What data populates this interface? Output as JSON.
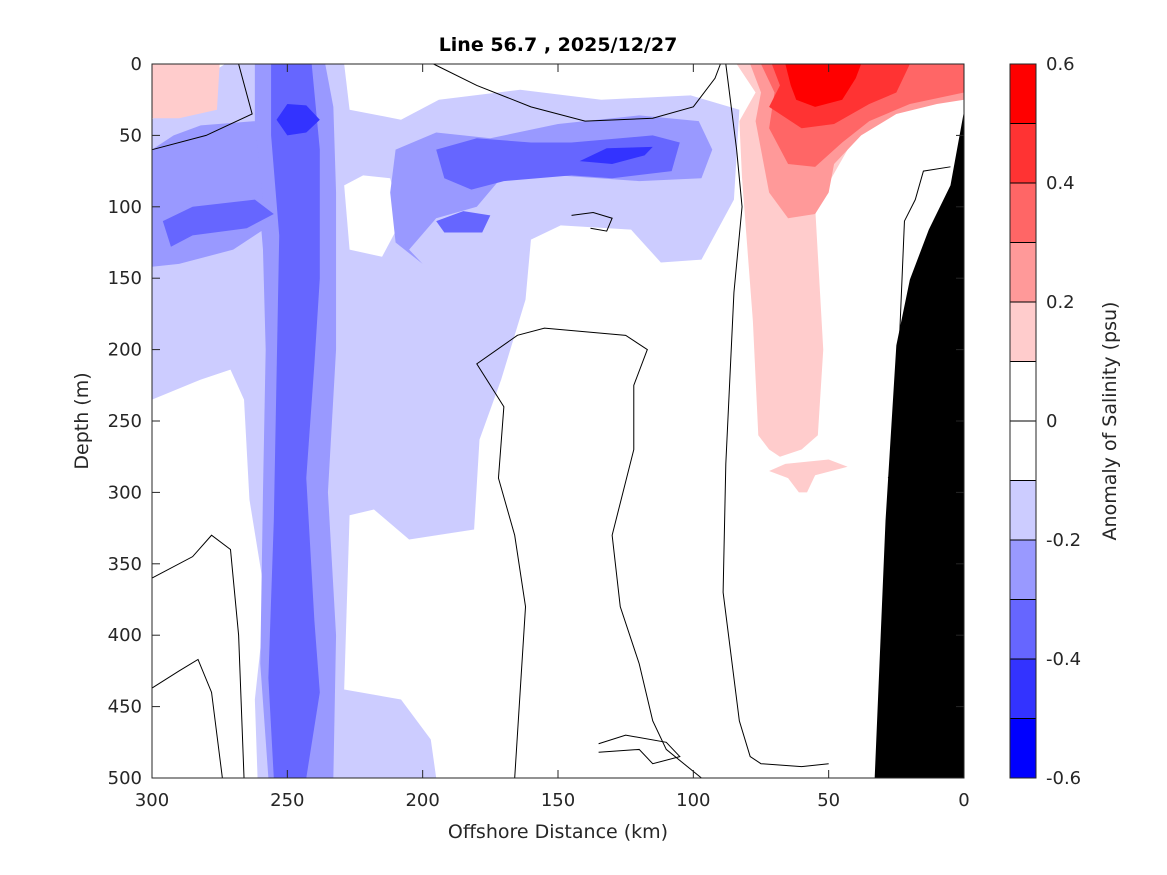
{
  "chart_data": {
    "type": "heatmap",
    "title": "Line 56.7 , 2025/12/27",
    "xlabel": "Offshore Distance (km)",
    "ylabel": "Depth (m)",
    "colorbar_label": "Anomaly of Salinity (psu)",
    "xlim": [
      300,
      0
    ],
    "ylim": [
      0,
      500
    ],
    "xticks": [
      300,
      250,
      200,
      150,
      100,
      50,
      0
    ],
    "yticks": [
      0,
      50,
      100,
      150,
      200,
      250,
      300,
      350,
      400,
      450,
      500
    ],
    "clim": [
      -0.6,
      0.6
    ],
    "colorbar_ticks": [
      "0.6",
      "0.4",
      "0.2",
      "0",
      "-0.2",
      "-0.4",
      "-0.6"
    ],
    "colorbar_tick_values": [
      0.6,
      0.4,
      0.2,
      0,
      -0.2,
      -0.4,
      -0.6
    ],
    "levels": [
      {
        "min": -0.6,
        "max": -0.5,
        "color": "#0000ff"
      },
      {
        "min": -0.5,
        "max": -0.4,
        "color": "#3333ff"
      },
      {
        "min": -0.4,
        "max": -0.3,
        "color": "#6666ff"
      },
      {
        "min": -0.3,
        "max": -0.2,
        "color": "#9999ff"
      },
      {
        "min": -0.2,
        "max": -0.1,
        "color": "#ccccff"
      },
      {
        "min": -0.1,
        "max": 0.0,
        "color": "#ffffff"
      },
      {
        "min": 0.0,
        "max": 0.1,
        "color": "#ffffff"
      },
      {
        "min": 0.1,
        "max": 0.2,
        "color": "#ffcccc"
      },
      {
        "min": 0.2,
        "max": 0.3,
        "color": "#ff9999"
      },
      {
        "min": 0.3,
        "max": 0.4,
        "color": "#ff6666"
      },
      {
        "min": 0.4,
        "max": 0.5,
        "color": "#ff3333"
      },
      {
        "min": 0.5,
        "max": 0.6,
        "color": "#ff0000"
      }
    ],
    "regions": [
      {
        "value": -0.15,
        "points": [
          [
            300,
            39
          ],
          [
            292,
            22
          ],
          [
            282,
            11
          ],
          [
            273,
            0
          ],
          [
            229,
            0
          ],
          [
            227,
            32
          ],
          [
            208,
            39
          ],
          [
            194,
            25
          ],
          [
            164,
            18
          ],
          [
            134,
            25
          ],
          [
            101,
            22
          ],
          [
            83,
            32
          ],
          [
            85,
            95
          ],
          [
            97,
            137
          ],
          [
            112,
            139
          ],
          [
            123,
            116
          ],
          [
            149,
            113
          ],
          [
            160,
            123
          ],
          [
            162,
            165
          ],
          [
            171,
            221
          ],
          [
            179,
            263
          ],
          [
            181,
            326
          ],
          [
            205,
            333
          ],
          [
            218,
            312
          ],
          [
            227,
            316
          ],
          [
            229,
            438
          ],
          [
            208,
            445
          ],
          [
            197,
            473
          ],
          [
            195,
            500
          ],
          [
            261,
            500
          ],
          [
            262,
            445
          ],
          [
            258,
            375
          ],
          [
            264,
            305
          ],
          [
            266,
            235
          ],
          [
            271,
            214
          ],
          [
            282,
            221
          ],
          [
            300,
            235
          ]
        ]
      },
      {
        "value": 0.0,
        "points": [
          [
            229,
            85
          ],
          [
            222,
            78
          ],
          [
            212,
            80
          ],
          [
            208,
            110
          ],
          [
            215,
            135
          ],
          [
            227,
            130
          ]
        ]
      },
      {
        "value": 0.15,
        "points": [
          [
            300,
            0
          ],
          [
            275,
            0
          ],
          [
            276,
            32
          ],
          [
            290,
            38
          ],
          [
            300,
            38
          ]
        ]
      },
      {
        "value": -0.25,
        "points": [
          [
            262,
            0
          ],
          [
            236,
            0
          ],
          [
            233,
            30
          ],
          [
            232,
            90
          ],
          [
            232,
            200
          ],
          [
            235,
            300
          ],
          [
            232,
            400
          ],
          [
            233,
            500
          ],
          [
            257,
            500
          ],
          [
            260,
            420
          ],
          [
            259,
            300
          ],
          [
            258,
            200
          ],
          [
            259,
            130
          ],
          [
            262,
            60
          ]
        ]
      },
      {
        "value": -0.25,
        "points": [
          [
            300,
            60
          ],
          [
            292,
            50
          ],
          [
            282,
            43
          ],
          [
            262,
            40
          ],
          [
            258,
            115
          ],
          [
            270,
            130
          ],
          [
            290,
            140
          ],
          [
            300,
            142
          ]
        ]
      },
      {
        "value": -0.25,
        "points": [
          [
            210,
            60
          ],
          [
            195,
            48
          ],
          [
            175,
            52
          ],
          [
            150,
            42
          ],
          [
            120,
            36
          ],
          [
            98,
            40
          ],
          [
            93,
            60
          ],
          [
            97,
            80
          ],
          [
            120,
            82
          ],
          [
            150,
            78
          ],
          [
            172,
            82
          ],
          [
            180,
            100
          ],
          [
            195,
            108
          ],
          [
            205,
            130
          ],
          [
            200,
            140
          ],
          [
            210,
            125
          ],
          [
            212,
            90
          ]
        ]
      },
      {
        "value": -0.35,
        "points": [
          [
            256,
            0
          ],
          [
            241,
            0
          ],
          [
            238,
            60
          ],
          [
            238,
            150
          ],
          [
            240,
            210
          ],
          [
            243,
            290
          ],
          [
            240,
            390
          ],
          [
            238,
            440
          ],
          [
            243,
            500
          ],
          [
            255,
            500
          ],
          [
            257,
            430
          ],
          [
            255,
            320
          ],
          [
            254,
            220
          ],
          [
            253,
            120
          ],
          [
            256,
            50
          ]
        ]
      },
      {
        "value": -0.35,
        "points": [
          [
            296,
            110
          ],
          [
            285,
            100
          ],
          [
            262,
            95
          ],
          [
            255,
            105
          ],
          [
            265,
            115
          ],
          [
            285,
            120
          ],
          [
            293,
            128
          ]
        ]
      },
      {
        "value": -0.35,
        "points": [
          [
            195,
            60
          ],
          [
            180,
            52
          ],
          [
            160,
            55
          ],
          [
            145,
            55
          ],
          [
            115,
            50
          ],
          [
            105,
            55
          ],
          [
            108,
            75
          ],
          [
            130,
            80
          ],
          [
            145,
            78
          ],
          [
            170,
            82
          ],
          [
            182,
            88
          ],
          [
            192,
            80
          ]
        ]
      },
      {
        "value": -0.35,
        "points": [
          [
            195,
            110
          ],
          [
            185,
            103
          ],
          [
            175,
            106
          ],
          [
            178,
            118
          ],
          [
            192,
            118
          ]
        ]
      },
      {
        "value": -0.45,
        "points": [
          [
            254,
            39
          ],
          [
            250,
            28
          ],
          [
            243,
            29
          ],
          [
            238,
            39
          ],
          [
            243,
            48
          ],
          [
            250,
            50
          ]
        ]
      },
      {
        "value": -0.45,
        "points": [
          [
            142,
            68
          ],
          [
            132,
            59
          ],
          [
            115,
            58
          ],
          [
            118,
            64
          ],
          [
            130,
            70
          ]
        ]
      },
      {
        "value": 0.15,
        "points": [
          [
            84,
            0
          ],
          [
            77,
            20
          ],
          [
            83,
            40
          ],
          [
            82,
            80
          ],
          [
            78,
            180
          ],
          [
            76,
            260
          ],
          [
            72,
            270
          ],
          [
            68,
            275
          ],
          [
            60,
            270
          ],
          [
            54,
            260
          ],
          [
            52,
            200
          ],
          [
            55,
            100
          ],
          [
            40,
            50
          ],
          [
            30,
            36
          ],
          [
            15,
            30
          ],
          [
            5,
            22
          ],
          [
            0,
            20
          ],
          [
            0,
            0
          ]
        ]
      },
      {
        "value": 0.15,
        "points": [
          [
            72,
            285
          ],
          [
            66,
            280
          ],
          [
            50,
            277
          ],
          [
            43,
            282
          ],
          [
            55,
            288
          ],
          [
            58,
            300
          ],
          [
            61,
            300
          ],
          [
            65,
            290
          ]
        ]
      },
      {
        "value": 0.25,
        "points": [
          [
            79,
            0
          ],
          [
            75,
            20
          ],
          [
            77,
            40
          ],
          [
            72,
            90
          ],
          [
            65,
            108
          ],
          [
            55,
            105
          ],
          [
            50,
            90
          ],
          [
            48,
            70
          ],
          [
            38,
            50
          ],
          [
            25,
            35
          ],
          [
            10,
            28
          ],
          [
            0,
            25
          ],
          [
            0,
            0
          ]
        ]
      },
      {
        "value": 0.35,
        "points": [
          [
            75,
            0
          ],
          [
            70,
            20
          ],
          [
            72,
            45
          ],
          [
            65,
            70
          ],
          [
            55,
            72
          ],
          [
            45,
            55
          ],
          [
            35,
            40
          ],
          [
            20,
            28
          ],
          [
            0,
            20
          ],
          [
            0,
            0
          ]
        ]
      },
      {
        "value": 0.45,
        "points": [
          [
            71,
            0
          ],
          [
            68,
            15
          ],
          [
            72,
            30
          ],
          [
            60,
            45
          ],
          [
            48,
            42
          ],
          [
            35,
            28
          ],
          [
            25,
            20
          ],
          [
            20,
            0
          ]
        ]
      },
      {
        "value": 0.55,
        "points": [
          [
            66,
            0
          ],
          [
            64,
            15
          ],
          [
            62,
            25
          ],
          [
            55,
            30
          ],
          [
            45,
            25
          ],
          [
            40,
            10
          ],
          [
            38,
            0
          ]
        ]
      }
    ],
    "land": [
      [
        33,
        500
      ],
      [
        29,
        320
      ],
      [
        25,
        197
      ],
      [
        20,
        151
      ],
      [
        13,
        116
      ],
      [
        5,
        85
      ],
      [
        0,
        33
      ],
      [
        0,
        500
      ]
    ],
    "zero_contours": [
      [
        [
          166,
          500
        ],
        [
          164,
          440
        ],
        [
          162,
          380
        ],
        [
          166,
          330
        ],
        [
          172,
          290
        ],
        [
          170,
          240
        ],
        [
          180,
          210
        ],
        [
          165,
          190
        ],
        [
          155,
          185
        ],
        [
          125,
          190
        ],
        [
          117,
          200
        ],
        [
          122,
          225
        ],
        [
          122,
          270
        ],
        [
          130,
          330
        ],
        [
          127,
          380
        ],
        [
          120,
          420
        ],
        [
          115,
          460
        ],
        [
          110,
          480
        ],
        [
          97,
          500
        ]
      ],
      [
        [
          88,
          0
        ],
        [
          86,
          30
        ],
        [
          84,
          60
        ],
        [
          82,
          100
        ],
        [
          85,
          160
        ],
        [
          87,
          240
        ],
        [
          88,
          280
        ],
        [
          89,
          370
        ],
        [
          85,
          430
        ],
        [
          83,
          460
        ],
        [
          79,
          485
        ],
        [
          75,
          490
        ],
        [
          60,
          492
        ],
        [
          50,
          490
        ]
      ],
      [
        [
          300,
          360
        ],
        [
          285,
          345
        ],
        [
          278,
          330
        ],
        [
          271,
          340
        ],
        [
          268,
          400
        ],
        [
          266,
          500
        ]
      ],
      [
        [
          300,
          437
        ],
        [
          290,
          425
        ],
        [
          283,
          417
        ],
        [
          278,
          440
        ],
        [
          274,
          500
        ]
      ],
      [
        [
          300,
          60
        ],
        [
          280,
          50
        ],
        [
          263,
          35
        ],
        [
          268,
          0
        ]
      ],
      [
        [
          196,
          0
        ],
        [
          180,
          15
        ],
        [
          160,
          30
        ],
        [
          140,
          40
        ],
        [
          115,
          38
        ],
        [
          100,
          30
        ],
        [
          92,
          10
        ],
        [
          90,
          0
        ]
      ],
      [
        [
          5,
          72
        ],
        [
          15,
          75
        ],
        [
          18,
          95
        ],
        [
          22,
          110
        ],
        [
          24,
          200
        ],
        [
          22,
          270
        ],
        [
          28,
          290
        ]
      ],
      [
        [
          135,
          476
        ],
        [
          125,
          470
        ],
        [
          110,
          475
        ],
        [
          105,
          485
        ],
        [
          115,
          490
        ],
        [
          120,
          480
        ],
        [
          135,
          482
        ]
      ],
      [
        [
          145,
          106
        ],
        [
          137,
          104
        ],
        [
          130,
          108
        ],
        [
          132,
          117
        ],
        [
          138,
          115
        ]
      ]
    ]
  }
}
